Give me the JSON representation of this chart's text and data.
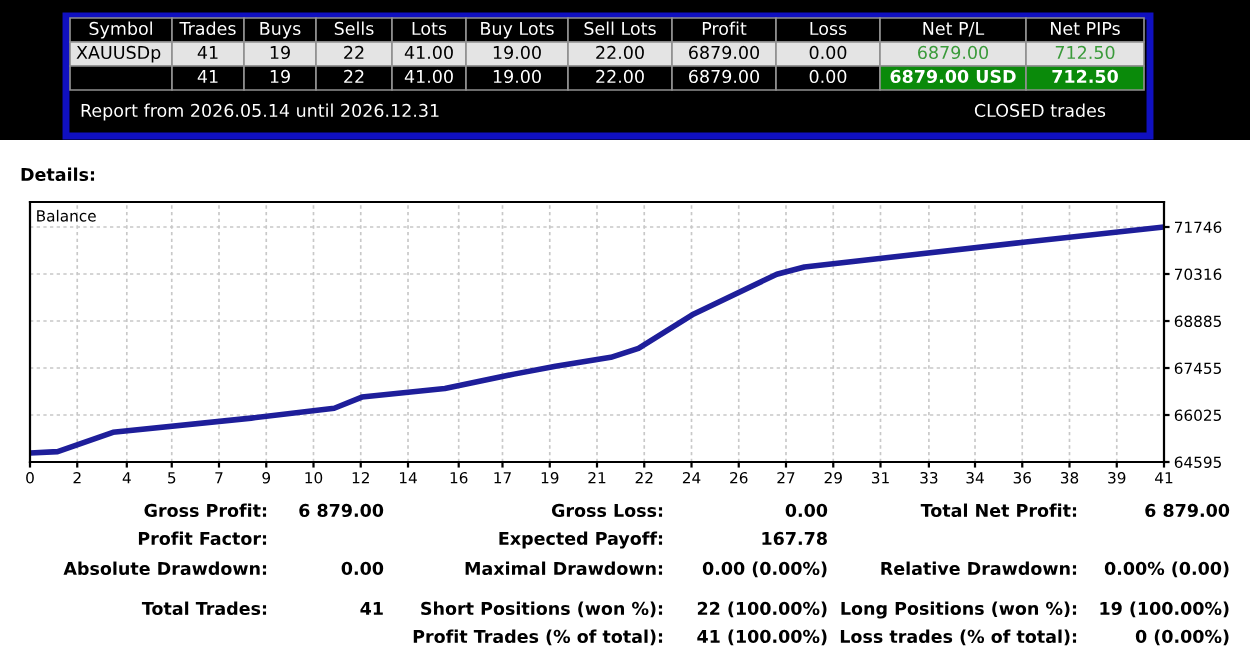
{
  "chart_data": {
    "type": "line",
    "title": "Details:",
    "ylabel": "Balance",
    "x": [
      0,
      1,
      3,
      8,
      11,
      12,
      15,
      17.5,
      19,
      21,
      22,
      24,
      27,
      28,
      36,
      41
    ],
    "series": [
      {
        "color": "#1e1e9a",
        "values": [
          64870,
          64910,
          65500,
          65930,
          66230,
          66570,
          66830,
          67270,
          67510,
          67780,
          68050,
          69100,
          70310,
          70530,
          71290,
          71746
        ]
      }
    ],
    "xlim": [
      0,
      41
    ],
    "ylim": [
      64595,
      72507
    ],
    "xticks": [
      0,
      {
        "value": 1.708,
        "label": "2"
      },
      {
        "value": 3.5,
        "label": "4"
      },
      {
        "value": 5.125,
        "label": "5"
      },
      {
        "value": 6.833,
        "label": "7"
      },
      {
        "value": 8.542,
        "label": "9"
      },
      {
        "value": 10.25,
        "label": "10"
      },
      {
        "value": 11.958,
        "label": "12"
      },
      {
        "value": 13.667,
        "label": "14"
      },
      {
        "value": 15.5,
        "label": "16"
      },
      {
        "value": 17.083,
        "label": "17"
      },
      {
        "value": 18.792,
        "label": "19"
      },
      {
        "value": 20.5,
        "label": "21"
      },
      {
        "value": 22.208,
        "label": "22"
      },
      {
        "value": 23.917,
        "label": "24"
      },
      {
        "value": 25.625,
        "label": "26"
      },
      {
        "value": 27.333,
        "label": "27"
      },
      {
        "value": 29.042,
        "label": "29"
      },
      {
        "value": 30.75,
        "label": "31"
      },
      {
        "value": 32.5,
        "label": "33"
      },
      {
        "value": 34.167,
        "label": "34"
      },
      {
        "value": 35.875,
        "label": "36"
      },
      {
        "value": 37.583,
        "label": "38"
      },
      {
        "value": 39.292,
        "label": "39"
      },
      41
    ],
    "yticks": [
      64595,
      66025,
      67455,
      68885,
      70316,
      71746
    ],
    "grid": true,
    "marker": "none",
    "line_style": "solid",
    "annotations": [
      "Symbol",
      "Trades",
      "Buys",
      "Sells",
      "Lots",
      "Buy Lots",
      "Sell Lots",
      "Profit",
      "Loss",
      "Net P/L",
      "Net PIPs",
      "XAUUSDp",
      "41",
      "19",
      "22",
      "41.00",
      "19.00",
      "22.00",
      "6879.00",
      "0.00",
      "6879.00",
      "712.50",
      "41",
      "19",
      "22",
      "41.00",
      "19.00",
      "22.00",
      "6879.00",
      "0.00",
      "6879.00 USD",
      "712.50",
      "Report from 2026.05.14 until 2026.12.31",
      "CLOSED trades",
      "Gross Profit:",
      "6 879.00",
      "Gross Loss:",
      "0.00",
      "Total Net Profit:",
      "6 879.00",
      "Profit Factor:",
      "Expected Payoff:",
      "167.78",
      "Absolute Drawdown:",
      "0.00",
      "Maximal Drawdown:",
      "0.00 (0.00%)",
      "Relative Drawdown:",
      "0.00% (0.00)",
      "Total Trades:",
      "41",
      "Short Positions (won %):",
      "22 (100.00%)",
      "Long Positions (won %):",
      "19 (100.00%)",
      "Profit Trades (% of total):",
      "41 (100.00%)",
      "Loss trades (% of total):",
      "0 (0.00%)"
    ]
  }
}
